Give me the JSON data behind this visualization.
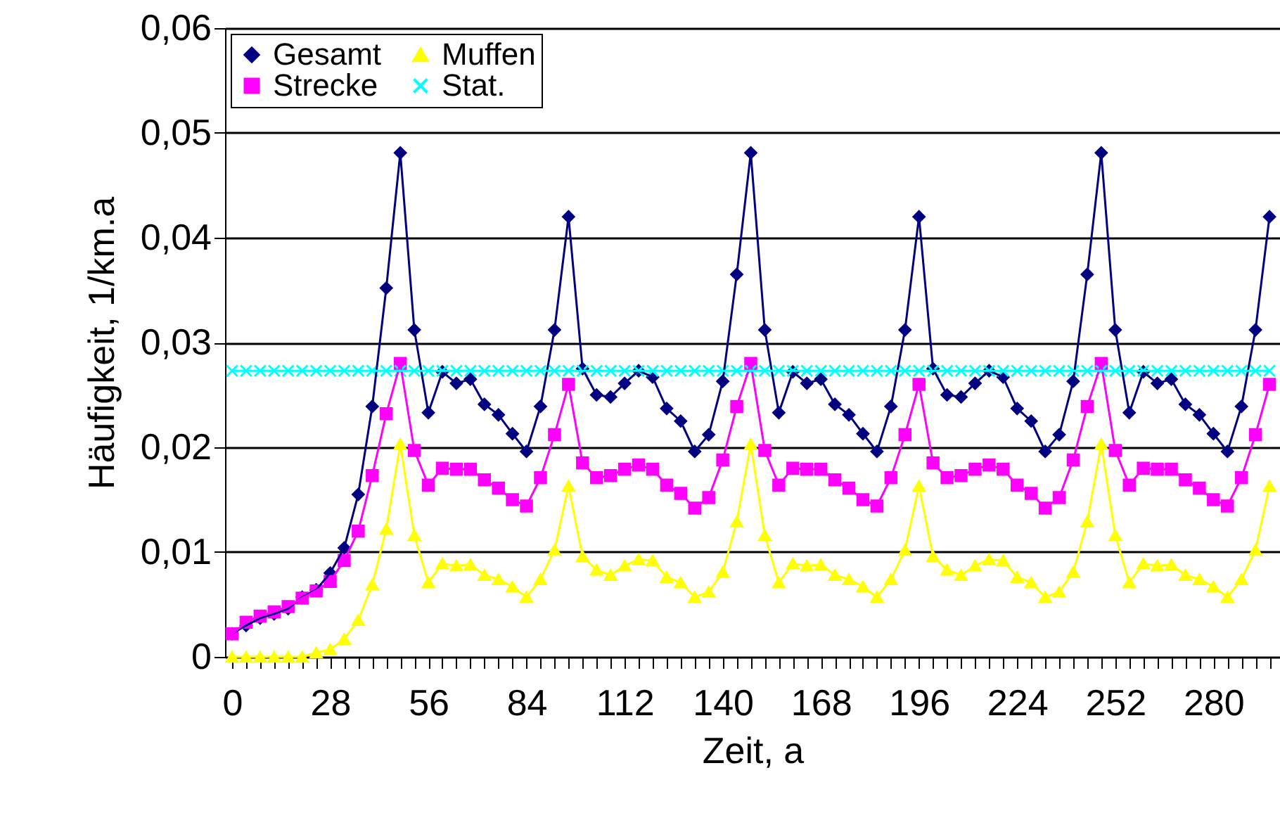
{
  "chart_data": {
    "type": "line",
    "xlabel": "Zeit, a",
    "ylabel": "Häufigkeit, 1/km.a",
    "x": [
      0,
      4,
      8,
      12,
      16,
      20,
      24,
      28,
      32,
      36,
      40,
      44,
      48,
      52,
      56,
      60,
      64,
      68,
      72,
      76,
      80,
      84,
      88,
      92,
      96,
      100,
      104,
      108,
      112,
      116,
      120,
      124,
      128,
      132,
      136,
      140,
      144,
      148,
      152,
      156,
      160,
      164,
      168,
      172,
      176,
      180,
      184,
      188,
      192,
      196,
      200,
      204,
      208,
      212,
      216,
      220,
      224,
      228,
      232,
      236,
      240,
      244,
      248,
      252,
      256,
      260,
      264,
      268,
      272,
      276,
      280,
      284,
      288,
      292,
      296
    ],
    "series": [
      {
        "name": "Gesamt",
        "color": "#000080",
        "marker": "diamond",
        "values": [
          0.0022,
          0.003,
          0.0037,
          0.0041,
          0.0046,
          0.0057,
          0.0064,
          0.008,
          0.0104,
          0.0155,
          0.0239,
          0.0352,
          0.0481,
          0.0312,
          0.0233,
          0.0272,
          0.0261,
          0.0265,
          0.0241,
          0.0231,
          0.0213,
          0.0196,
          0.0239,
          0.0312,
          0.042,
          0.0275,
          0.025,
          0.0248,
          0.0261,
          0.0273,
          0.0267,
          0.0237,
          0.0225,
          0.0196,
          0.0212,
          0.0263,
          0.0365,
          0.0481,
          0.0312,
          0.0233,
          0.0272,
          0.0261,
          0.0265,
          0.0241,
          0.0231,
          0.0213,
          0.0196,
          0.0239,
          0.0312,
          0.042,
          0.0275,
          0.025,
          0.0248,
          0.0261,
          0.0273,
          0.0267,
          0.0237,
          0.0225,
          0.0196,
          0.0212,
          0.0263,
          0.0365,
          0.0481,
          0.0312,
          0.0233,
          0.0272,
          0.0261,
          0.0265,
          0.0241,
          0.0231,
          0.0213,
          0.0196,
          0.0239,
          0.0312,
          0.042
        ]
      },
      {
        "name": "Strecke",
        "color": "#ff00ff",
        "marker": "square",
        "values": [
          0.0022,
          0.0033,
          0.0039,
          0.0043,
          0.0048,
          0.0056,
          0.0063,
          0.0072,
          0.0092,
          0.012,
          0.0173,
          0.0232,
          0.028,
          0.0197,
          0.0164,
          0.018,
          0.0179,
          0.0179,
          0.0169,
          0.0161,
          0.015,
          0.0144,
          0.0171,
          0.0212,
          0.026,
          0.0185,
          0.0171,
          0.0173,
          0.0179,
          0.0183,
          0.0179,
          0.0164,
          0.0156,
          0.0142,
          0.0152,
          0.0188,
          0.0239,
          0.028,
          0.0197,
          0.0164,
          0.018,
          0.0179,
          0.0179,
          0.0169,
          0.0161,
          0.015,
          0.0144,
          0.0171,
          0.0212,
          0.026,
          0.0185,
          0.0171,
          0.0173,
          0.0179,
          0.0183,
          0.0179,
          0.0164,
          0.0156,
          0.0142,
          0.0152,
          0.0188,
          0.0239,
          0.028,
          0.0197,
          0.0164,
          0.018,
          0.0179,
          0.0179,
          0.0169,
          0.0161,
          0.015,
          0.0144,
          0.0171,
          0.0212,
          0.026
        ]
      },
      {
        "name": "Muffen",
        "color": "#ffff00",
        "marker": "triangle",
        "values": [
          0,
          0,
          0,
          0,
          0,
          0,
          0.0004,
          0.0007,
          0.0017,
          0.0035,
          0.0069,
          0.0122,
          0.0203,
          0.0116,
          0.0071,
          0.0089,
          0.0087,
          0.0088,
          0.0078,
          0.0074,
          0.0067,
          0.0057,
          0.0074,
          0.0102,
          0.0163,
          0.0096,
          0.0083,
          0.0078,
          0.0087,
          0.0093,
          0.0092,
          0.0076,
          0.0071,
          0.0057,
          0.0062,
          0.0081,
          0.0129,
          0.0203,
          0.0116,
          0.0071,
          0.0089,
          0.0087,
          0.0088,
          0.0078,
          0.0074,
          0.0067,
          0.0057,
          0.0074,
          0.0102,
          0.0163,
          0.0096,
          0.0083,
          0.0078,
          0.0087,
          0.0093,
          0.0092,
          0.0076,
          0.0071,
          0.0057,
          0.0062,
          0.0081,
          0.0129,
          0.0203,
          0.0116,
          0.0071,
          0.0089,
          0.0087,
          0.0088,
          0.0078,
          0.0074,
          0.0067,
          0.0057,
          0.0074,
          0.0102,
          0.0163
        ]
      },
      {
        "name": "Stat.",
        "color": "#00ffff",
        "marker": "cross",
        "values": [
          0.0273,
          0.0273,
          0.0273,
          0.0273,
          0.0273,
          0.0273,
          0.0273,
          0.0273,
          0.0273,
          0.0273,
          0.0273,
          0.0273,
          0.0273,
          0.0273,
          0.0273,
          0.0273,
          0.0273,
          0.0273,
          0.0273,
          0.0273,
          0.0273,
          0.0273,
          0.0273,
          0.0273,
          0.0273,
          0.0273,
          0.0273,
          0.0273,
          0.0273,
          0.0273,
          0.0273,
          0.0273,
          0.0273,
          0.0273,
          0.0273,
          0.0273,
          0.0273,
          0.0273,
          0.0273,
          0.0273,
          0.0273,
          0.0273,
          0.0273,
          0.0273,
          0.0273,
          0.0273,
          0.0273,
          0.0273,
          0.0273,
          0.0273,
          0.0273,
          0.0273,
          0.0273,
          0.0273,
          0.0273,
          0.0273,
          0.0273,
          0.0273,
          0.0273,
          0.0273,
          0.0273,
          0.0273,
          0.0273,
          0.0273,
          0.0273,
          0.0273,
          0.0273,
          0.0273,
          0.0273,
          0.0273,
          0.0273,
          0.0273,
          0.0273,
          0.0273,
          0.0273
        ]
      }
    ],
    "xlim": [
      -2,
      299
    ],
    "xticks": [
      0,
      {
        "value": 4,
        "label": null
      },
      {
        "value": 8,
        "label": null
      },
      {
        "value": 12,
        "label": null
      },
      {
        "value": 16,
        "label": null
      },
      {
        "value": 20,
        "label": null
      },
      {
        "value": 24,
        "label": null
      },
      28,
      {
        "value": 32,
        "label": null
      },
      {
        "value": 36,
        "label": null
      },
      {
        "value": 40,
        "label": null
      },
      {
        "value": 44,
        "label": null
      },
      {
        "value": 48,
        "label": null
      },
      {
        "value": 52,
        "label": null
      },
      56,
      {
        "value": 60,
        "label": null
      },
      {
        "value": 64,
        "label": null
      },
      {
        "value": 68,
        "label": null
      },
      {
        "value": 72,
        "label": null
      },
      {
        "value": 76,
        "label": null
      },
      {
        "value": 80,
        "label": null
      },
      84,
      {
        "value": 88,
        "label": null
      },
      {
        "value": 92,
        "label": null
      },
      {
        "value": 96,
        "label": null
      },
      {
        "value": 100,
        "label": null
      },
      {
        "value": 104,
        "label": null
      },
      {
        "value": 108,
        "label": null
      },
      112,
      {
        "value": 116,
        "label": null
      },
      {
        "value": 120,
        "label": null
      },
      {
        "value": 124,
        "label": null
      },
      {
        "value": 128,
        "label": null
      },
      {
        "value": 132,
        "label": null
      },
      {
        "value": 136,
        "label": null
      },
      140,
      {
        "value": 144,
        "label": null
      },
      {
        "value": 148,
        "label": null
      },
      {
        "value": 152,
        "label": null
      },
      {
        "value": 156,
        "label": null
      },
      {
        "value": 160,
        "label": null
      },
      {
        "value": 164,
        "label": null
      },
      168,
      {
        "value": 172,
        "label": null
      },
      {
        "value": 176,
        "label": null
      },
      {
        "value": 180,
        "label": null
      },
      {
        "value": 184,
        "label": null
      },
      {
        "value": 188,
        "label": null
      },
      {
        "value": 192,
        "label": null
      },
      196,
      {
        "value": 200,
        "label": null
      },
      {
        "value": 204,
        "label": null
      },
      {
        "value": 208,
        "label": null
      },
      {
        "value": 212,
        "label": null
      },
      {
        "value": 216,
        "label": null
      },
      {
        "value": 220,
        "label": null
      },
      224,
      {
        "value": 228,
        "label": null
      },
      {
        "value": 232,
        "label": null
      },
      {
        "value": 236,
        "label": null
      },
      {
        "value": 240,
        "label": null
      },
      {
        "value": 244,
        "label": null
      },
      {
        "value": 248,
        "label": null
      },
      252,
      {
        "value": 256,
        "label": null
      },
      {
        "value": 260,
        "label": null
      },
      {
        "value": 264,
        "label": null
      },
      {
        "value": 268,
        "label": null
      },
      {
        "value": 272,
        "label": null
      },
      {
        "value": 276,
        "label": null
      },
      280,
      {
        "value": 284,
        "label": null
      },
      {
        "value": 288,
        "label": null
      },
      {
        "value": 292,
        "label": null
      },
      {
        "value": 296,
        "label": null
      }
    ],
    "ylim": [
      0,
      0.06
    ],
    "yticks": [
      0,
      {
        "value": 0.01,
        "label": "0,01"
      },
      {
        "value": 0.02,
        "label": "0,02"
      },
      {
        "value": 0.03,
        "label": "0,03"
      },
      {
        "value": 0.04,
        "label": "0,04"
      },
      {
        "value": 0.05,
        "label": "0,05"
      },
      {
        "value": 0.06,
        "label": "0,06"
      }
    ],
    "grid": "y",
    "legend": "top left",
    "line_style": "solid"
  }
}
